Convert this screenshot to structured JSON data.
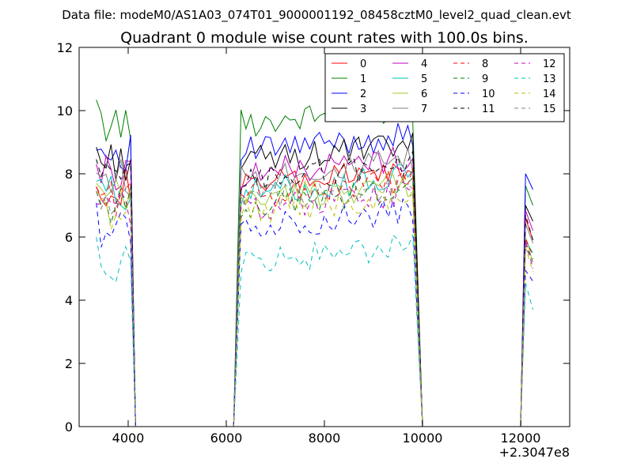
{
  "header": {
    "data_file": "Data file: modeM0/AS1A03_074T01_9000001192_08458cztM0_level2_quad_clean.evt"
  },
  "chart_data": {
    "type": "line",
    "title": "Quadrant 0 module wise count rates with 100.0s bins.",
    "xlabel": "",
    "ylabel": "",
    "x_offset_label": "+2.3047e8",
    "xlim": [
      3000,
      13000
    ],
    "ylim": [
      0,
      12
    ],
    "xticks": [
      4000,
      6000,
      8000,
      10000,
      12000
    ],
    "yticks": [
      0,
      2,
      4,
      6,
      8,
      10,
      12
    ],
    "grid": false,
    "legend_position": "top-right",
    "segments": [
      {
        "start": 3350,
        "end": 4050,
        "zero_after": 4150
      },
      {
        "start": 6300,
        "end": 9850,
        "zero_before": 6150,
        "zero_after": 10000
      },
      {
        "start": 12100,
        "end": 12250,
        "zero_before": 12000
      }
    ],
    "series": [
      {
        "name": "0",
        "color": "#ff0000",
        "dash": "solid",
        "level": 7.6,
        "end_level": 5.9
      },
      {
        "name": "1",
        "color": "#008000",
        "dash": "solid",
        "level": 9.6,
        "end_level": 7.0
      },
      {
        "name": "2",
        "color": "#0000ff",
        "dash": "solid",
        "level": 8.7,
        "end_level": 7.5
      },
      {
        "name": "3",
        "color": "#000000",
        "dash": "solid",
        "level": 8.4,
        "end_level": 6.5
      },
      {
        "name": "4",
        "color": "#bf00bf",
        "dash": "solid",
        "level": 8.0,
        "end_level": 6.2
      },
      {
        "name": "5",
        "color": "#00bfbf",
        "dash": "solid",
        "level": 7.4,
        "end_level": 5.5
      },
      {
        "name": "6",
        "color": "#9acd32",
        "dash": "solid",
        "level": 7.2,
        "end_level": 5.2
      },
      {
        "name": "7",
        "color": "#808080",
        "dash": "solid",
        "level": 7.9,
        "end_level": 5.8
      },
      {
        "name": "8",
        "color": "#ff0000",
        "dash": "dashed",
        "level": 7.3,
        "end_level": 5.4
      },
      {
        "name": "9",
        "color": "#008000",
        "dash": "dashed",
        "level": 7.0,
        "end_level": 5.3
      },
      {
        "name": "10",
        "color": "#0000ff",
        "dash": "dashed",
        "level": 6.3,
        "end_level": 4.6
      },
      {
        "name": "11",
        "color": "#000000",
        "dash": "dashed",
        "level": 7.8,
        "end_level": 5.9
      },
      {
        "name": "12",
        "color": "#bf00bf",
        "dash": "dashed",
        "level": 6.9,
        "end_level": 5.0
      },
      {
        "name": "13",
        "color": "#00bfbf",
        "dash": "dashed",
        "level": 5.2,
        "end_level": 3.7
      },
      {
        "name": "14",
        "color": "#bfbf00",
        "dash": "dashed",
        "level": 6.8,
        "end_level": 4.9
      },
      {
        "name": "15",
        "color": "#808080",
        "dash": "dashed",
        "level": 7.1,
        "end_level": 5.2
      }
    ]
  }
}
